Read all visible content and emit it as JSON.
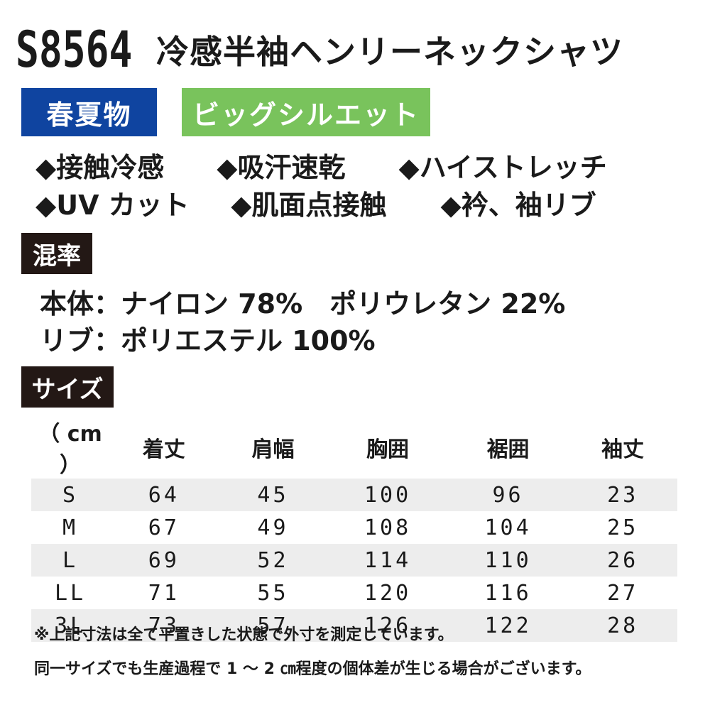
{
  "product": {
    "code": "S8564",
    "name": "冷感半袖ヘンリーネックシャツ"
  },
  "badges": {
    "season": "春夏物",
    "silhouette": "ビッグシルエット"
  },
  "features": {
    "row1": [
      "◆接触冷感",
      "◆吸汗速乾",
      "◆ハイストレッチ"
    ],
    "row2": [
      "◆UV カット",
      "◆肌面点接触",
      "◆衿、袖リブ"
    ]
  },
  "composition": {
    "heading": "混率",
    "body": "本体：ナイロン 78%　ポリウレタン 22%",
    "rib": "リブ：ポリエステル 100%"
  },
  "sizes": {
    "heading": "サイズ",
    "headers": [
      "（ cm ）",
      "着丈",
      "肩幅",
      "胸囲",
      "裾囲",
      "袖丈"
    ],
    "rows": [
      [
        "S",
        "64",
        "45",
        "100",
        "96",
        "23"
      ],
      [
        "M",
        "67",
        "49",
        "108",
        "104",
        "25"
      ],
      [
        "L",
        "69",
        "52",
        "114",
        "110",
        "26"
      ],
      [
        "LL",
        "71",
        "55",
        "120",
        "116",
        "27"
      ],
      [
        "3L",
        "73",
        "57",
        "126",
        "122",
        "28"
      ]
    ]
  },
  "notes": {
    "line1": "※上記寸法は全て平置きした状態で外寸を測定しています。",
    "line2": "同一サイズでも生産過程で 1 ～ 2 ㎝程度の個体差が生じる場合がございます。"
  },
  "colors": {
    "season_badge": "#0f44a0",
    "silhouette_badge": "#79c35c",
    "section_heading": "#231815",
    "row_shade": "#ededed"
  }
}
